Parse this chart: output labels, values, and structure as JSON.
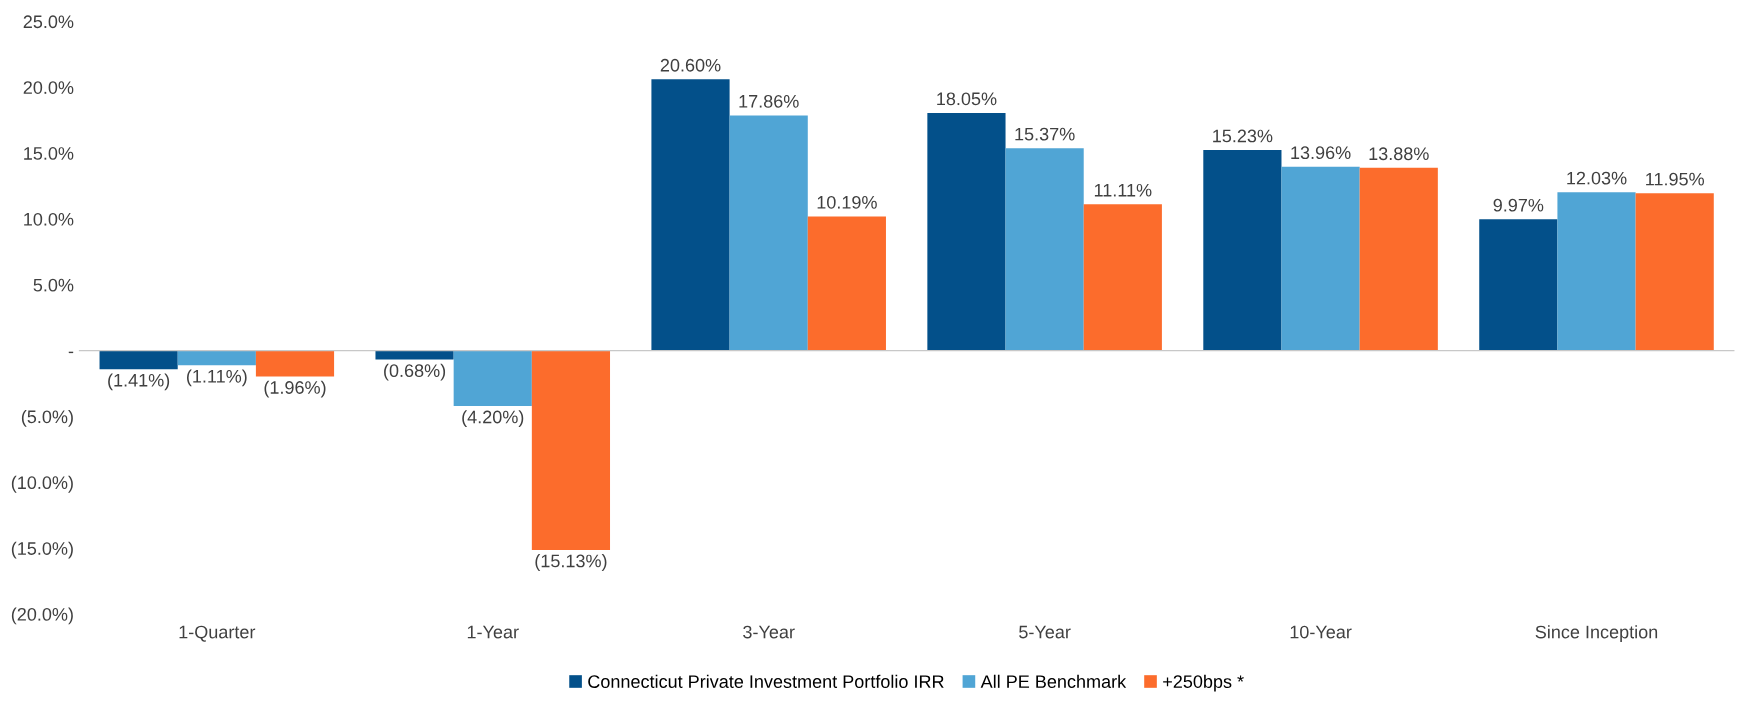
{
  "chart_data": {
    "type": "bar",
    "categories": [
      "1-Quarter",
      "1-Year",
      "3-Year",
      "5-Year",
      "10-Year",
      "Since Inception"
    ],
    "series": [
      {
        "name": "Connecticut Private Investment Portfolio IRR",
        "color": "#03508a",
        "values": [
          -1.41,
          -0.68,
          20.6,
          18.05,
          15.23,
          9.97
        ],
        "value_labels": [
          "(1.41%)",
          "(0.68%)",
          "20.60%",
          "18.05%",
          "15.23%",
          "9.97%"
        ]
      },
      {
        "name": "All PE Benchmark",
        "color": "#50a5d5",
        "values": [
          -1.11,
          -4.2,
          17.86,
          15.37,
          13.96,
          12.03
        ],
        "value_labels": [
          "(1.11%)",
          "(4.20%)",
          "17.86%",
          "15.37%",
          "13.96%",
          "12.03%"
        ]
      },
      {
        "name": "+250bps *",
        "color": "#fc6c2c",
        "values": [
          -1.96,
          -15.13,
          10.19,
          11.11,
          13.88,
          11.95
        ],
        "value_labels": [
          "(1.96%)",
          "(15.13%)",
          "10.19%",
          "11.11%",
          "13.88%",
          "11.95%"
        ]
      }
    ],
    "ylim": [
      -20,
      25
    ],
    "yticks": [
      {
        "value": -20,
        "label": "(20.0%)"
      },
      {
        "value": -15,
        "label": "(15.0%)"
      },
      {
        "value": -10,
        "label": "(10.0%)"
      },
      {
        "value": -5,
        "label": "(5.0%)"
      },
      {
        "value": 0,
        "label": "-"
      },
      {
        "value": 5,
        "label": "5.0%"
      },
      {
        "value": 10,
        "label": "10.0%"
      },
      {
        "value": 15,
        "label": "15.0%"
      },
      {
        "value": 20,
        "label": "20.0%"
      },
      {
        "value": 25,
        "label": "25.0%"
      }
    ],
    "ref_lines": [
      {
        "axis": "y",
        "value": 0,
        "color": "#c8c8c8"
      }
    ],
    "legend": "bottom"
  }
}
